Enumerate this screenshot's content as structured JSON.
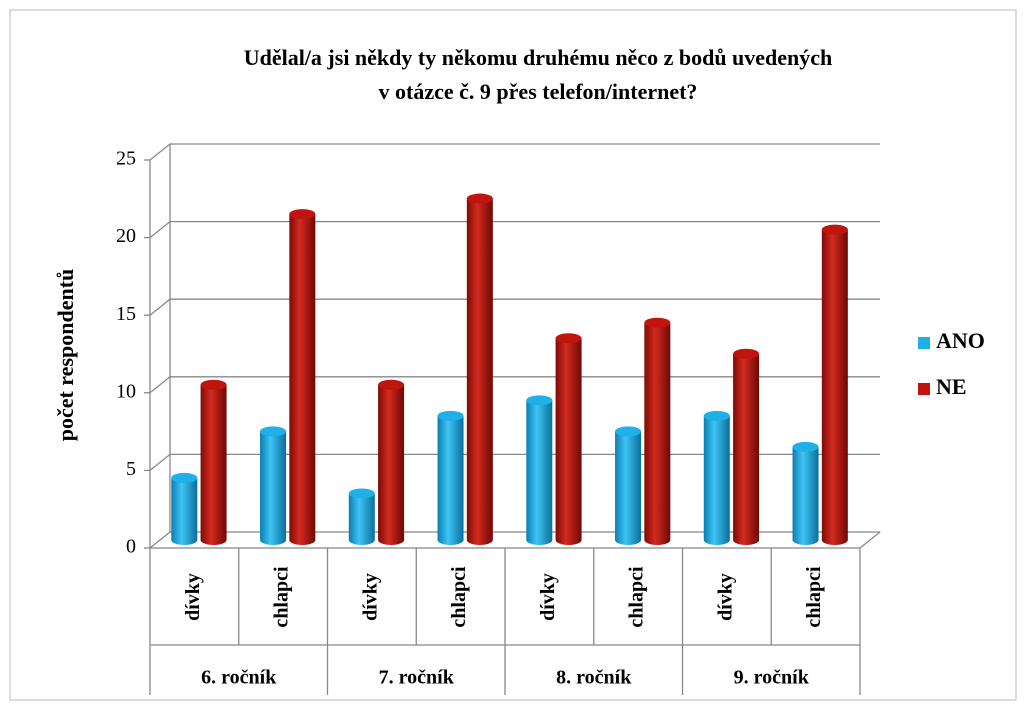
{
  "chart_data": {
    "type": "bar",
    "title": [
      "Udělal/a jsi někdy ty někomu druhému něco z bodů uvedených",
      "v otázce č. 9 přes telefon/internet?"
    ],
    "y_label": "počet respondentů",
    "categories": [
      "dívky",
      "chlapci",
      "dívky",
      "chlapci",
      "dívky",
      "chlapci",
      "dívky",
      "chlapci"
    ],
    "groups": [
      "6. ročník",
      "7. ročník",
      "8. ročník",
      "9. ročník"
    ],
    "series": [
      {
        "name": "ANO",
        "color": "#1fb0e8",
        "values": [
          4,
          7,
          3,
          8,
          9,
          7,
          8,
          6
        ]
      },
      {
        "name": "NE",
        "color": "#c0150f",
        "values": [
          10,
          21,
          10,
          22,
          13,
          14,
          12,
          20
        ]
      }
    ],
    "ylim": [
      0,
      25
    ],
    "yticks": [
      0,
      5,
      10,
      15,
      20,
      25
    ],
    "grid": true,
    "legend": "right"
  }
}
